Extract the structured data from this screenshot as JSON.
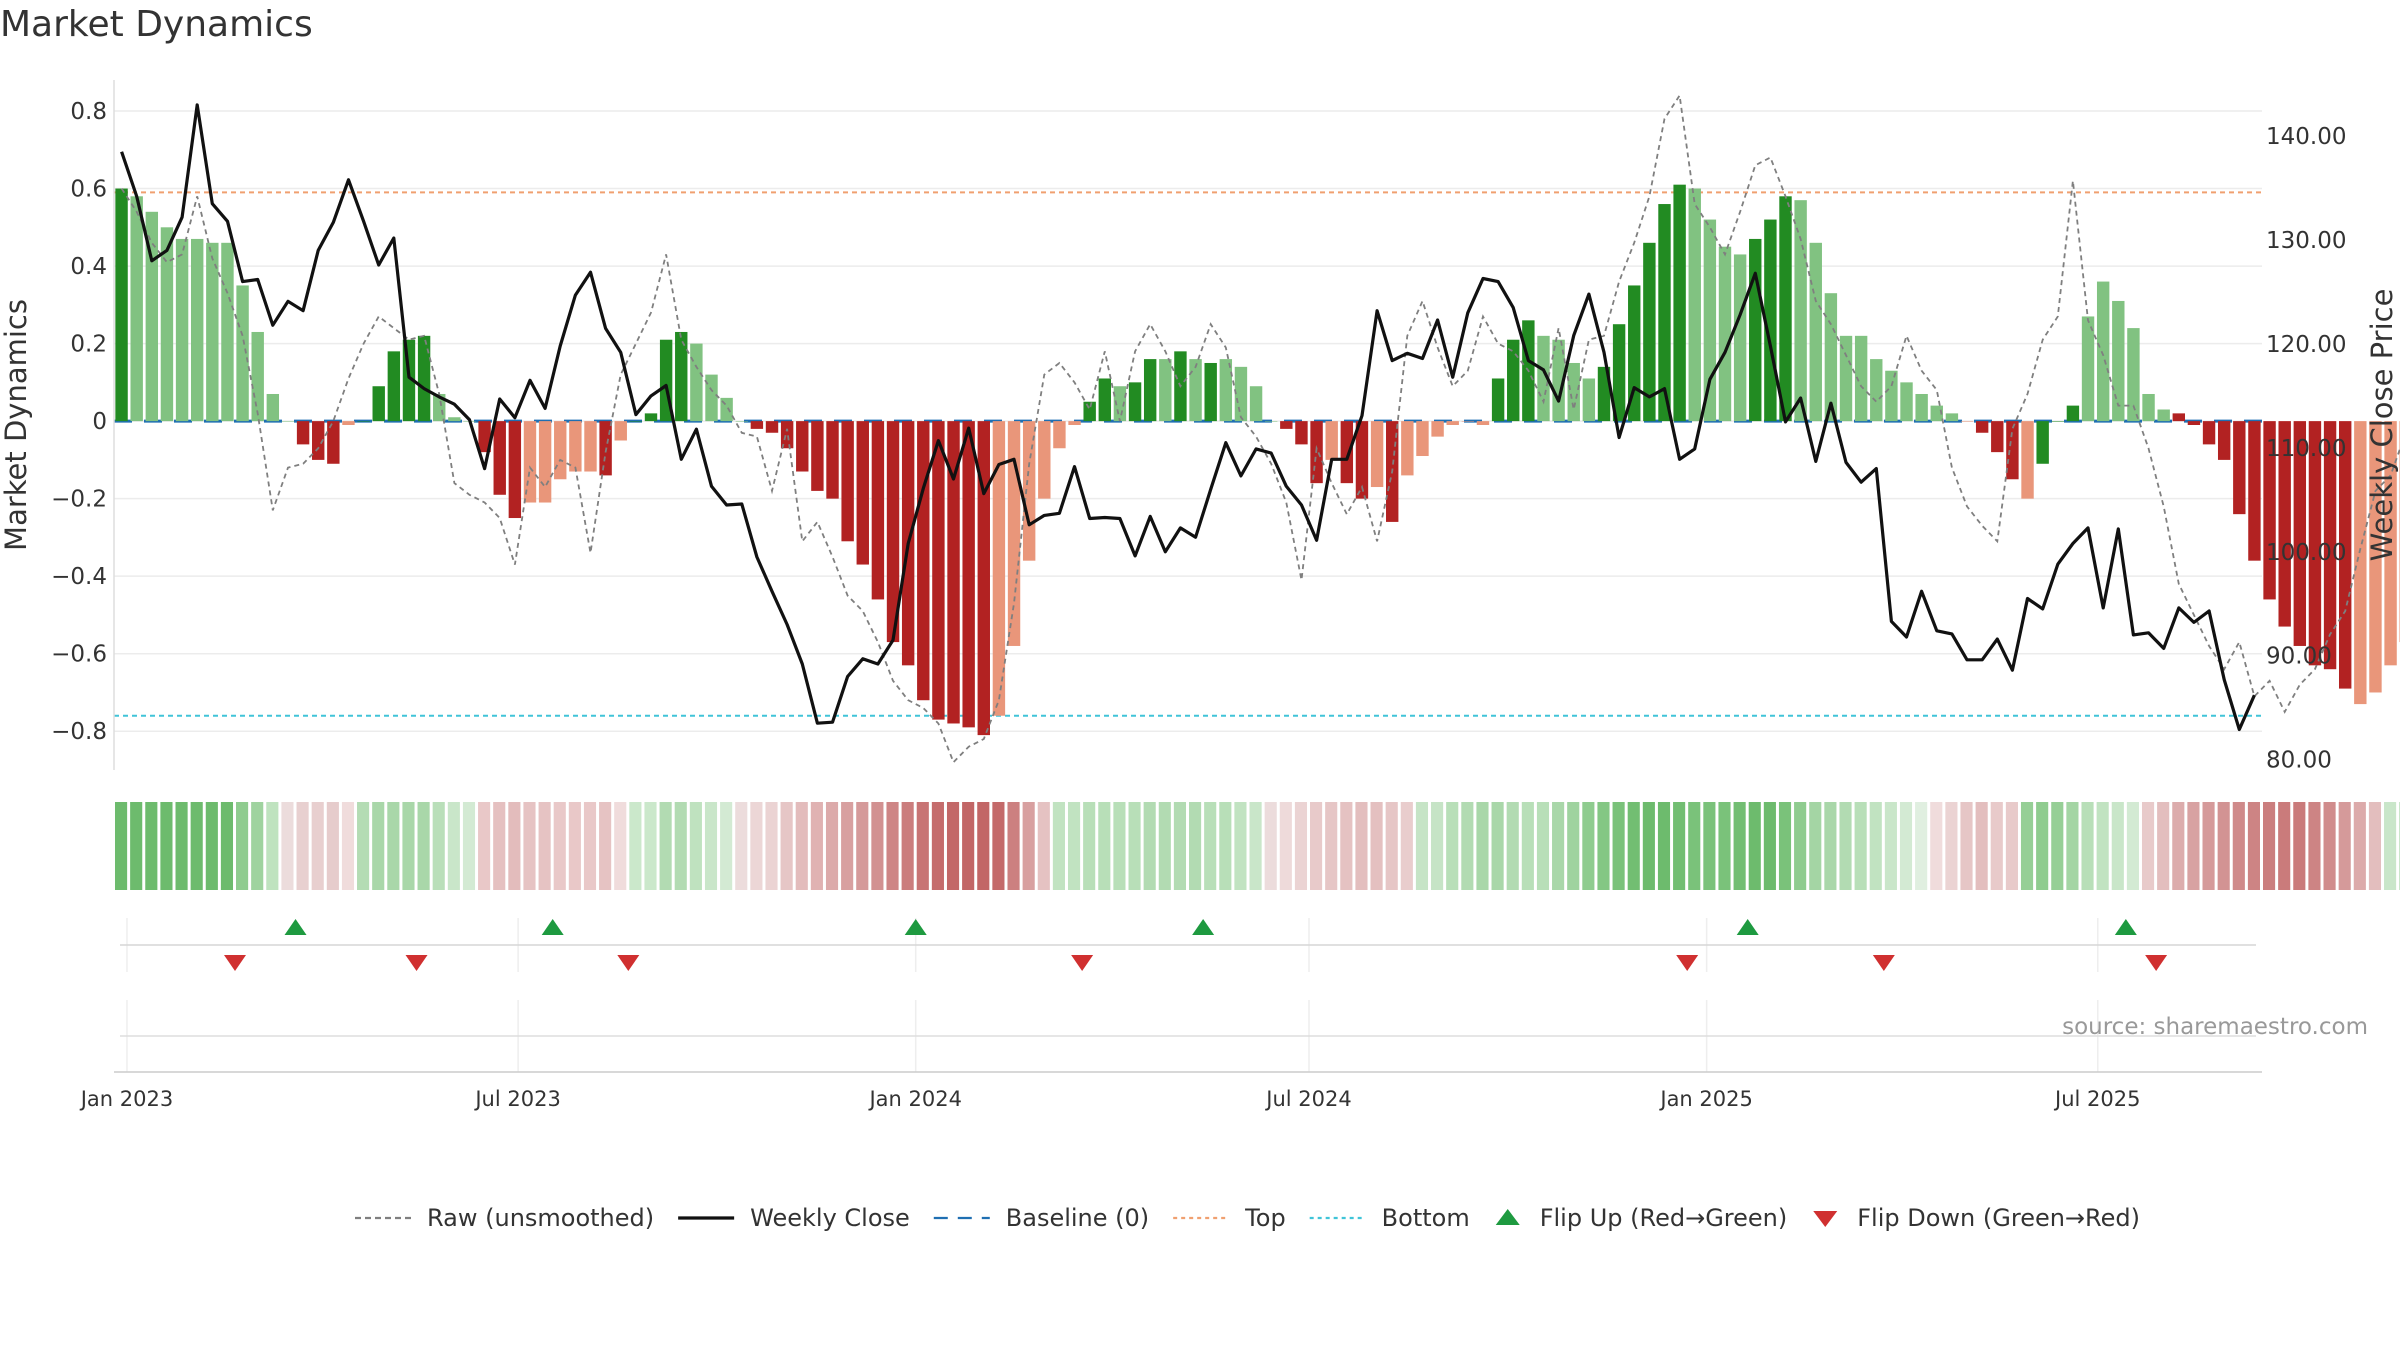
{
  "chart_data": {
    "type": "bar",
    "title": "Market Dynamics",
    "ylabel": "Market Dynamics",
    "y2label": "Weekly Close Price",
    "ylim": [
      -0.9,
      0.88
    ],
    "y2lim": [
      79.0,
      145.4
    ],
    "yticks": [
      0.8,
      0.6,
      0.4,
      0.2,
      0,
      -0.2,
      -0.4,
      -0.6,
      -0.8
    ],
    "ytick_labels": [
      "0.8",
      "0.6",
      "0.4",
      "0.2",
      "0",
      "−0.2",
      "−0.4",
      "−0.6",
      "−0.8"
    ],
    "y2ticks": [
      140,
      130,
      120,
      110,
      100,
      90,
      80
    ],
    "y2tick_labels": [
      "140.00",
      "130.00",
      "120.00",
      "110.00",
      "100.00",
      "90.00",
      "80.00"
    ],
    "x_start": "2022-12-26",
    "x_end": "2025-09-15",
    "xticks": [
      "2023-01-01",
      "2023-07-01",
      "2024-01-01",
      "2024-07-01",
      "2025-01-01",
      "2025-07-01"
    ],
    "xtick_labels": [
      "Jan 2023",
      "Jul 2023",
      "Jan 2024",
      "Jul 2024",
      "Jan 2025",
      "Jul 2025"
    ],
    "week_start": "2022-12-26",
    "dynamics": [
      0.6,
      0.58,
      0.54,
      0.5,
      0.47,
      0.47,
      0.46,
      0.46,
      0.35,
      0.23,
      0.07,
      0.0,
      -0.06,
      -0.1,
      -0.11,
      -0.01,
      0.0,
      0.09,
      0.18,
      0.21,
      0.22,
      0.07,
      0.01,
      0.0,
      -0.08,
      -0.19,
      -0.25,
      -0.21,
      -0.21,
      -0.15,
      -0.13,
      -0.13,
      -0.14,
      -0.05,
      0.0,
      0.02,
      0.21,
      0.23,
      0.2,
      0.12,
      0.06,
      0.0,
      -0.02,
      -0.03,
      -0.07,
      -0.13,
      -0.18,
      -0.2,
      -0.31,
      -0.37,
      -0.46,
      -0.57,
      -0.63,
      -0.72,
      -0.77,
      -0.78,
      -0.79,
      -0.81,
      -0.76,
      -0.58,
      -0.36,
      -0.2,
      -0.07,
      -0.01,
      0.05,
      0.11,
      0.09,
      0.1,
      0.16,
      0.16,
      0.18,
      0.16,
      0.15,
      0.16,
      0.14,
      0.09,
      0.0,
      -0.02,
      -0.06,
      -0.16,
      -0.1,
      -0.16,
      -0.2,
      -0.17,
      -0.26,
      -0.14,
      -0.09,
      -0.04,
      -0.01,
      0.0,
      -0.01,
      0.11,
      0.21,
      0.26,
      0.22,
      0.21,
      0.15,
      0.11,
      0.14,
      0.25,
      0.35,
      0.46,
      0.56,
      0.61,
      0.6,
      0.52,
      0.45,
      0.43,
      0.47,
      0.52,
      0.58,
      0.57,
      0.46,
      0.33,
      0.22,
      0.22,
      0.16,
      0.13,
      0.1,
      0.07,
      0.04,
      0.02,
      0.0,
      -0.03,
      -0.08,
      -0.15,
      -0.2,
      -0.11,
      0.0,
      0.04,
      0.27,
      0.36,
      0.31,
      0.24,
      0.07,
      0.03,
      0.02,
      -0.01,
      -0.06,
      -0.1,
      -0.24,
      -0.36,
      -0.46,
      -0.53,
      -0.58,
      -0.63,
      -0.64,
      -0.69,
      -0.73,
      -0.7,
      -0.63,
      -0.57,
      -0.41,
      -0.25,
      -0.14,
      -0.03,
      0.04,
      0.03,
      -0.08,
      -0.2,
      -0.35,
      -0.42,
      -0.43,
      -0.45,
      -0.53,
      -0.61
    ],
    "bar_colors": [
      "#228b22",
      "#81c281",
      "#81c281",
      "#81c281",
      "#81c281",
      "#81c281",
      "#81c281",
      "#81c281",
      "#81c281",
      "#81c281",
      "#81c281",
      "#81c281",
      "#b22222",
      "#b22222",
      "#b22222",
      "#e9967a",
      "#228b22",
      "#228b22",
      "#228b22",
      "#228b22",
      "#228b22",
      "#81c281",
      "#81c281",
      "#81c281",
      "#b22222",
      "#b22222",
      "#b22222",
      "#e9967a",
      "#e9967a",
      "#e9967a",
      "#e9967a",
      "#e9967a",
      "#b22222",
      "#e9967a",
      "#228b22",
      "#228b22",
      "#228b22",
      "#228b22",
      "#81c281",
      "#81c281",
      "#81c281",
      "#81c281",
      "#b22222",
      "#b22222",
      "#b22222",
      "#b22222",
      "#b22222",
      "#b22222",
      "#b22222",
      "#b22222",
      "#b22222",
      "#b22222",
      "#b22222",
      "#b22222",
      "#b22222",
      "#b22222",
      "#b22222",
      "#b22222",
      "#e9967a",
      "#e9967a",
      "#e9967a",
      "#e9967a",
      "#e9967a",
      "#e9967a",
      "#228b22",
      "#228b22",
      "#81c281",
      "#228b22",
      "#228b22",
      "#81c281",
      "#228b22",
      "#81c281",
      "#228b22",
      "#81c281",
      "#81c281",
      "#81c281",
      "#81c281",
      "#b22222",
      "#b22222",
      "#b22222",
      "#e9967a",
      "#b22222",
      "#b22222",
      "#e9967a",
      "#b22222",
      "#e9967a",
      "#e9967a",
      "#e9967a",
      "#e9967a",
      "#e9967a",
      "#e9967a",
      "#228b22",
      "#228b22",
      "#228b22",
      "#81c281",
      "#81c281",
      "#81c281",
      "#81c281",
      "#228b22",
      "#228b22",
      "#228b22",
      "#228b22",
      "#228b22",
      "#228b22",
      "#81c281",
      "#81c281",
      "#81c281",
      "#81c281",
      "#228b22",
      "#228b22",
      "#228b22",
      "#81c281",
      "#81c281",
      "#81c281",
      "#81c281",
      "#81c281",
      "#81c281",
      "#81c281",
      "#81c281",
      "#81c281",
      "#81c281",
      "#81c281",
      "#e9967a",
      "#b22222",
      "#b22222",
      "#b22222",
      "#e9967a",
      "#228b22",
      "#228b22",
      "#228b22",
      "#81c281",
      "#81c281",
      "#81c281",
      "#81c281",
      "#81c281",
      "#81c281",
      "#b22222",
      "#b22222",
      "#b22222",
      "#b22222",
      "#b22222",
      "#b22222",
      "#b22222",
      "#b22222",
      "#b22222",
      "#b22222",
      "#b22222",
      "#b22222",
      "#e9967a",
      "#e9967a",
      "#e9967a",
      "#e9967a",
      "#e9967a",
      "#e9967a",
      "#e9967a",
      "#e9967a",
      "#228b22",
      "#81c281",
      "#b22222",
      "#b22222",
      "#b22222",
      "#b22222",
      "#b22222",
      "#b22222",
      "#b22222",
      "#b22222"
    ],
    "raw": [
      0.6,
      0.54,
      0.46,
      0.41,
      0.43,
      0.58,
      0.42,
      0.33,
      0.22,
      0.02,
      -0.23,
      -0.12,
      -0.11,
      -0.07,
      0.0,
      0.11,
      0.2,
      0.27,
      0.24,
      0.21,
      0.22,
      0.07,
      -0.16,
      -0.19,
      -0.21,
      -0.25,
      -0.37,
      -0.12,
      -0.17,
      -0.1,
      -0.12,
      -0.34,
      -0.08,
      0.12,
      0.2,
      0.28,
      0.43,
      0.21,
      0.14,
      0.08,
      0.04,
      -0.03,
      -0.04,
      -0.18,
      -0.02,
      -0.31,
      -0.26,
      -0.35,
      -0.45,
      -0.49,
      -0.57,
      -0.67,
      -0.72,
      -0.74,
      -0.78,
      -0.88,
      -0.84,
      -0.82,
      -0.72,
      -0.47,
      -0.11,
      0.12,
      0.15,
      0.1,
      0.03,
      0.18,
      0.0,
      0.18,
      0.25,
      0.18,
      0.09,
      0.14,
      0.25,
      0.19,
      0.01,
      -0.04,
      -0.11,
      -0.21,
      -0.41,
      -0.07,
      -0.16,
      -0.24,
      -0.17,
      -0.31,
      -0.13,
      0.22,
      0.31,
      0.19,
      0.09,
      0.13,
      0.27,
      0.2,
      0.18,
      0.13,
      0.05,
      0.24,
      0.03,
      0.21,
      0.22,
      0.36,
      0.46,
      0.58,
      0.78,
      0.84,
      0.56,
      0.5,
      0.43,
      0.54,
      0.66,
      0.68,
      0.58,
      0.47,
      0.31,
      0.25,
      0.17,
      0.09,
      0.05,
      0.09,
      0.22,
      0.13,
      0.08,
      -0.12,
      -0.22,
      -0.27,
      -0.31,
      -0.02,
      0.07,
      0.21,
      0.27,
      0.62,
      0.26,
      0.17,
      0.04,
      0.04,
      -0.07,
      -0.22,
      -0.42,
      -0.5,
      -0.58,
      -0.64,
      -0.57,
      -0.71,
      -0.67,
      -0.75,
      -0.68,
      -0.64,
      -0.55,
      -0.49,
      -0.33,
      -0.18,
      -0.14,
      -0.03,
      0.21,
      0.02,
      -0.31,
      -0.48,
      -0.52,
      -0.45,
      -0.43,
      -0.57,
      -0.73,
      -0.6,
      -0.56
    ],
    "close": [
      138.5,
      134.2,
      128.0,
      129.0,
      132.2,
      143.0,
      133.5,
      131.8,
      126.0,
      126.2,
      121.8,
      124.1,
      123.2,
      129.0,
      131.7,
      135.8,
      131.8,
      127.6,
      130.2,
      116.8,
      115.7,
      114.9,
      114.2,
      112.7,
      108.0,
      114.7,
      112.9,
      116.5,
      113.8,
      119.8,
      124.7,
      126.9,
      121.5,
      119.2,
      113.2,
      115.0,
      116.0,
      108.9,
      111.8,
      106.3,
      104.5,
      104.6,
      99.5,
      96.2,
      93.0,
      89.2,
      83.5,
      83.6,
      88.0,
      89.7,
      89.2,
      91.5,
      100.8,
      106.1,
      110.7,
      107.0,
      111.9,
      105.6,
      108.4,
      108.9,
      102.6,
      103.5,
      103.7,
      108.2,
      103.2,
      103.3,
      103.2,
      99.6,
      103.4,
      100.0,
      102.3,
      101.4,
      106.0,
      110.5,
      107.3,
      109.9,
      109.5,
      106.3,
      104.5,
      101.1,
      108.9,
      108.9,
      113.1,
      123.2,
      118.4,
      119.1,
      118.6,
      122.3,
      116.8,
      123.0,
      126.3,
      126.0,
      123.5,
      118.4,
      117.5,
      114.5,
      120.8,
      124.8,
      119.2,
      111.0,
      115.8,
      114.9,
      115.7,
      108.9,
      109.9,
      116.6,
      119.2,
      122.8,
      126.8,
      119.8,
      112.5,
      114.8,
      108.7,
      114.3,
      108.6,
      106.7,
      108.0,
      93.3,
      91.8,
      96.2,
      92.4,
      92.1,
      89.6,
      89.6,
      91.6,
      88.6,
      95.5,
      94.5,
      98.8,
      100.8,
      102.3,
      94.6,
      102.2,
      92.0,
      92.2,
      90.7,
      94.6,
      93.2,
      94.3,
      87.7,
      82.9,
      86.2
    ],
    "close_start_week": 0,
    "band_colors": [
      "#6dbb6d",
      "#6dbb6d",
      "#6dbb6d",
      "#6dbb6d",
      "#6dbb6d",
      "#6dbb6d",
      "#6dbb6d",
      "#6dbb6d",
      "#8fcc8f",
      "#9fd39f",
      "#bfe3bf",
      "#ecdcdc",
      "#e8d0d0",
      "#e8cfcf",
      "#e6cccc",
      "#f0dcdc",
      "#b4dcb4",
      "#a9d7a9",
      "#a9d7a9",
      "#a9d7a9",
      "#a9d7a9",
      "#b9dfb9",
      "#c9e6c9",
      "#d3ead3",
      "#e9c8c8",
      "#e5c0c0",
      "#e3bcbc",
      "#e6c3c3",
      "#e6c3c3",
      "#e9c8c8",
      "#e9c8c8",
      "#e9c8c8",
      "#e6c3c3",
      "#f0dcdc",
      "#cbe8cb",
      "#cbe8cb",
      "#b2dbb2",
      "#b2dbb2",
      "#bfe2bf",
      "#c9e6c9",
      "#d3ead3",
      "#ecdcdc",
      "#ecd6d6",
      "#ebd3d3",
      "#e6c6c6",
      "#e3bcbc",
      "#e0b2b2",
      "#dcaaaa",
      "#d8a0a0",
      "#d59a9a",
      "#d29191",
      "#ce8585",
      "#cb7d7d",
      "#c87474",
      "#c56c6c",
      "#c36868",
      "#c26666",
      "#c26666",
      "#c46a6a",
      "#cc8080",
      "#d8a0a0",
      "#e5c2c2",
      "#c1e3c1",
      "#c1e3c1",
      "#b8dfb8",
      "#b8dfb8",
      "#b8dfb8",
      "#b8dfb8",
      "#b2dbb2",
      "#b2dbb2",
      "#b2dbb2",
      "#b2dbb2",
      "#b8dfb8",
      "#b8dfb8",
      "#c1e3c1",
      "#c9e6c9",
      "#ecdcdc",
      "#eedada",
      "#ebd3d3",
      "#e8caca",
      "#e6c6c6",
      "#e5c2c2",
      "#e3bebe",
      "#e4c0c0",
      "#e6c6c6",
      "#e9cdcd",
      "#c6e4c6",
      "#c6e4c6",
      "#b8dfb8",
      "#b2dbb2",
      "#a9d7a9",
      "#a9d7a9",
      "#b2dbb2",
      "#b8dfb8",
      "#b8dfb8",
      "#a9d7a9",
      "#9fd39f",
      "#8fcc8f",
      "#84c784",
      "#7ac27a",
      "#72be72",
      "#6dbb6d",
      "#6dbb6d",
      "#72be72",
      "#7ac27a",
      "#7ac27a",
      "#7ac27a",
      "#72be72",
      "#6dbb6d",
      "#6dbb6d",
      "#7ac27a",
      "#8fcc8f",
      "#a4d5a4",
      "#a9d7a9",
      "#b2dbb2",
      "#b8dfb8",
      "#c1e3c1",
      "#c9e6c9",
      "#d3ead3",
      "#e0efe0",
      "#f0dcdc",
      "#ebd3d3",
      "#e6c6c6",
      "#e3bebe",
      "#e8caca",
      "#e8caca",
      "#96cf96",
      "#8fcc8f",
      "#96cf96",
      "#a4d5a4",
      "#b8dfb8",
      "#c1e3c1",
      "#c9e6c9",
      "#d3ead3",
      "#e8caca",
      "#e3bebe",
      "#dcacac",
      "#d8a2a2",
      "#d59a9a",
      "#d29393",
      "#cf8a8a",
      "#cd8484",
      "#cb7e7e",
      "#ca7b7b",
      "#ca7b7b",
      "#cd8484",
      "#d08c8c",
      "#d59a9a",
      "#dcaaaa",
      "#e3bebe",
      "#c9e6c9",
      "#c1e3c1",
      "#e8caca",
      "#e2bcbc",
      "#dba8a8",
      "#d69c9c",
      "#d49797",
      "#d39494",
      "#d08c8c",
      "#cd8484"
    ],
    "flip_up": [
      "2023-03-20",
      "2023-07-17",
      "2024-01-01",
      "2024-05-13",
      "2025-01-20",
      "2025-07-14"
    ],
    "flip_down": [
      "2023-02-20",
      "2023-05-15",
      "2023-08-21",
      "2024-03-18",
      "2024-12-23",
      "2025-03-24",
      "2025-07-28"
    ],
    "top": 0.59,
    "bottom": -0.76,
    "baseline": 0,
    "grid": true,
    "legend_placement": "bottom",
    "legend": [
      {
        "label": "Raw (unsmoothed)",
        "kind": "dashed-line",
        "color": "#7f7f7f"
      },
      {
        "label": "Weekly Close",
        "kind": "line",
        "color": "#111111"
      },
      {
        "label": "Baseline (0)",
        "kind": "dashed-line",
        "color": "#1f6fb2"
      },
      {
        "label": "Top",
        "kind": "dotted-line",
        "color": "#f0a070"
      },
      {
        "label": "Bottom",
        "kind": "dotted-line",
        "color": "#40c4d8"
      },
      {
        "label": "Flip Up (Red→Green)",
        "kind": "triangle-up",
        "color": "#1e9a40"
      },
      {
        "label": "Flip Down (Green→Red)",
        "kind": "triangle-down",
        "color": "#d03030"
      }
    ],
    "source": "source: sharemaestro.com"
  }
}
